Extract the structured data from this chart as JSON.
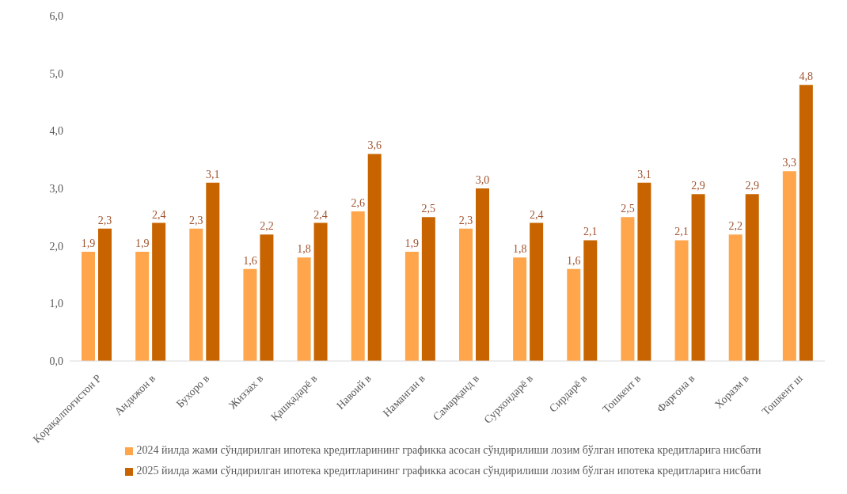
{
  "chart_data": {
    "type": "bar",
    "categories": [
      "Қорақалпоғистон Р",
      "Андижон в",
      "Бухоро в",
      "Жиззах в",
      "Қашқадарё в",
      "Навоий в",
      "Наманган в",
      "Самарқанд в",
      "Сурхондарё в",
      "Сирдарё в",
      "Тошкент в",
      "Фарғона в",
      "Хоразм в",
      "Тошкент ш"
    ],
    "series": [
      {
        "name": "2024 йилда жами сўндирилган ипотека кредитларининг графикка асосан сўндирилиши лозим бўлган ипотека кредитларига нисбати",
        "color": "#ffa64d",
        "values": [
          1.9,
          1.9,
          2.3,
          1.6,
          1.8,
          2.6,
          1.9,
          2.3,
          1.8,
          1.6,
          2.5,
          2.1,
          2.2,
          3.3
        ],
        "value_labels": [
          "1,9",
          "1,9",
          "2,3",
          "1,6",
          "1,8",
          "2,6",
          "1,9",
          "2,3",
          "1,8",
          "1,6",
          "2,5",
          "2,1",
          "2,2",
          "3,3"
        ]
      },
      {
        "name": "2025 йилда жами сўндирилган ипотека кредитларининг графикка асосан сўндирилиши лозим бўлган ипотека кредитларига нисбати",
        "color": "#c86400",
        "values": [
          2.3,
          2.4,
          3.1,
          2.2,
          2.4,
          3.6,
          2.5,
          3.0,
          2.4,
          2.1,
          3.1,
          2.9,
          2.9,
          4.8
        ],
        "value_labels": [
          "2,3",
          "2,4",
          "3,1",
          "2,2",
          "2,4",
          "3,6",
          "2,5",
          "3,0",
          "2,4",
          "2,1",
          "3,1",
          "2,9",
          "2,9",
          "4,8"
        ]
      }
    ],
    "ylim": [
      0,
      6
    ],
    "yticks": [
      {
        "value": 0,
        "label": "0,0"
      },
      {
        "value": 1,
        "label": "1,0"
      },
      {
        "value": 2,
        "label": "2,0"
      },
      {
        "value": 3,
        "label": "3,0"
      },
      {
        "value": 4,
        "label": "4,0"
      },
      {
        "value": 5,
        "label": "5,0"
      },
      {
        "value": 6,
        "label": "6,0"
      }
    ],
    "grid": false,
    "legend": "bottom"
  }
}
